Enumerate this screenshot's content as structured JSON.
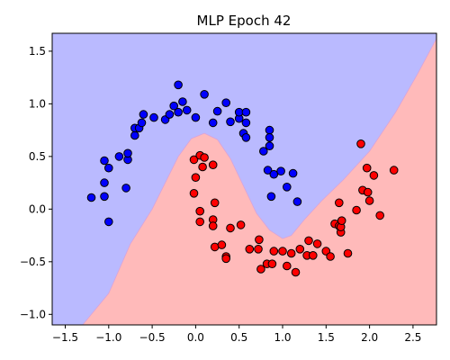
{
  "chart_data": {
    "type": "scatter",
    "title": "MLP Epoch 42",
    "xlabel": "",
    "ylabel": "",
    "xlim": [
      -1.65,
      2.77
    ],
    "ylim": [
      -1.1,
      1.67
    ],
    "x_ticks": [
      -1.5,
      -1.0,
      -0.5,
      0.0,
      0.5,
      1.0,
      1.5,
      2.0,
      2.5
    ],
    "y_ticks": [
      -1.0,
      -0.5,
      0.0,
      0.5,
      1.0,
      1.5
    ],
    "x_tick_labels": [
      "−1.5",
      "−1.0",
      "−0.5",
      "0.0",
      "0.5",
      "1.0",
      "1.5",
      "2.0",
      "2.5"
    ],
    "y_tick_labels": [
      "−1.0",
      "−0.5",
      "0.0",
      "0.5",
      "1.0",
      "1.5"
    ],
    "grid": false,
    "legend": "none",
    "colors": {
      "region_class0": "#babaff",
      "region_class1": "#ffbaba",
      "point_class0": "#0000ff",
      "point_class1": "#ff0000",
      "edge": "#000000"
    },
    "decision_boundary": [
      [
        -1.3,
        -1.1
      ],
      [
        -1.0,
        -0.8
      ],
      [
        -0.75,
        -0.33
      ],
      [
        -0.5,
        0.0
      ],
      [
        -0.35,
        0.25
      ],
      [
        -0.2,
        0.5
      ],
      [
        -0.05,
        0.67
      ],
      [
        0.1,
        0.72
      ],
      [
        0.25,
        0.66
      ],
      [
        0.4,
        0.48
      ],
      [
        0.55,
        0.22
      ],
      [
        0.7,
        -0.04
      ],
      [
        0.85,
        -0.2
      ],
      [
        1.0,
        -0.28
      ],
      [
        1.1,
        -0.25
      ],
      [
        1.25,
        -0.1
      ],
      [
        1.45,
        0.08
      ],
      [
        1.7,
        0.28
      ],
      [
        2.0,
        0.55
      ],
      [
        2.3,
        0.92
      ],
      [
        2.55,
        1.28
      ],
      [
        2.77,
        1.62
      ]
    ],
    "series": [
      {
        "class": 0,
        "points": [
          [
            -1.2,
            0.11
          ],
          [
            -1.05,
            0.46
          ],
          [
            -1.05,
            0.25
          ],
          [
            -1.0,
            0.39
          ],
          [
            -1.05,
            0.12
          ],
          [
            -1.0,
            -0.12
          ],
          [
            -0.88,
            0.5
          ],
          [
            -0.78,
            0.47
          ],
          [
            -0.8,
            0.2
          ],
          [
            -0.78,
            0.53
          ],
          [
            -0.7,
            0.7
          ],
          [
            -0.7,
            0.77
          ],
          [
            -0.65,
            0.77
          ],
          [
            -0.62,
            0.82
          ],
          [
            -0.6,
            0.9
          ],
          [
            -0.48,
            0.87
          ],
          [
            -0.35,
            0.85
          ],
          [
            -0.3,
            0.9
          ],
          [
            -0.2,
            0.92
          ],
          [
            -0.25,
            0.98
          ],
          [
            -0.2,
            1.18
          ],
          [
            -0.1,
            0.94
          ],
          [
            -0.15,
            1.02
          ],
          [
            0.0,
            0.87
          ],
          [
            0.1,
            1.09
          ],
          [
            0.2,
            0.82
          ],
          [
            0.25,
            0.93
          ],
          [
            0.35,
            1.01
          ],
          [
            0.4,
            0.83
          ],
          [
            0.5,
            0.86
          ],
          [
            0.5,
            0.92
          ],
          [
            0.58,
            0.92
          ],
          [
            0.58,
            0.82
          ],
          [
            0.55,
            0.72
          ],
          [
            0.58,
            0.68
          ],
          [
            0.78,
            0.55
          ],
          [
            0.83,
            0.37
          ],
          [
            0.85,
            0.75
          ],
          [
            0.85,
            0.68
          ],
          [
            0.85,
            0.6
          ],
          [
            0.9,
            0.33
          ],
          [
            0.87,
            0.12
          ],
          [
            0.98,
            0.36
          ],
          [
            1.05,
            0.21
          ],
          [
            1.12,
            0.34
          ],
          [
            1.17,
            0.07
          ]
        ]
      },
      {
        "class": 1,
        "points": [
          [
            -0.02,
            0.47
          ],
          [
            0.05,
            0.51
          ],
          [
            0.08,
            0.4
          ],
          [
            0.1,
            0.49
          ],
          [
            0.2,
            0.42
          ],
          [
            0.0,
            0.3
          ],
          [
            -0.02,
            0.15
          ],
          [
            0.05,
            -0.02
          ],
          [
            0.05,
            -0.12
          ],
          [
            0.22,
            0.06
          ],
          [
            0.2,
            -0.1
          ],
          [
            0.2,
            -0.16
          ],
          [
            0.22,
            -0.36
          ],
          [
            0.3,
            -0.34
          ],
          [
            0.35,
            -0.45
          ],
          [
            0.35,
            -0.47
          ],
          [
            0.4,
            -0.18
          ],
          [
            0.52,
            -0.15
          ],
          [
            0.62,
            -0.38
          ],
          [
            0.72,
            -0.38
          ],
          [
            0.73,
            -0.29
          ],
          [
            0.75,
            -0.57
          ],
          [
            0.82,
            -0.52
          ],
          [
            0.88,
            -0.52
          ],
          [
            0.9,
            -0.4
          ],
          [
            1.0,
            -0.4
          ],
          [
            1.05,
            -0.54
          ],
          [
            1.1,
            -0.42
          ],
          [
            1.15,
            -0.6
          ],
          [
            1.2,
            -0.38
          ],
          [
            1.28,
            -0.44
          ],
          [
            1.3,
            -0.3
          ],
          [
            1.35,
            -0.44
          ],
          [
            1.4,
            -0.33
          ],
          [
            1.5,
            -0.4
          ],
          [
            1.55,
            -0.45
          ],
          [
            1.6,
            -0.14
          ],
          [
            1.65,
            -0.16
          ],
          [
            1.67,
            -0.22
          ],
          [
            1.67,
            -0.17
          ],
          [
            1.68,
            -0.11
          ],
          [
            1.65,
            0.06
          ],
          [
            1.75,
            -0.42
          ],
          [
            1.85,
            -0.01
          ],
          [
            1.9,
            0.62
          ],
          [
            1.92,
            0.18
          ],
          [
            1.97,
            0.39
          ],
          [
            1.98,
            0.16
          ],
          [
            2.0,
            0.08
          ],
          [
            2.05,
            0.32
          ],
          [
            2.12,
            -0.06
          ],
          [
            2.28,
            0.37
          ]
        ]
      }
    ]
  }
}
